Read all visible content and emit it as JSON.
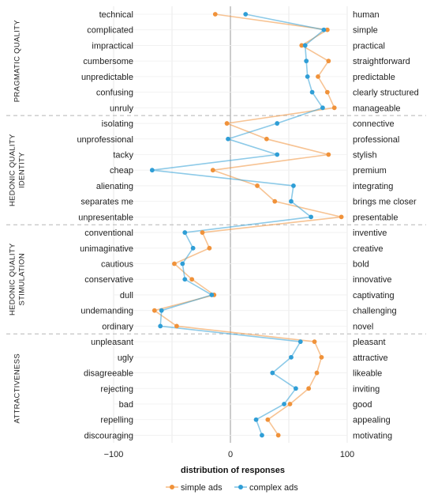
{
  "chart_data": {
    "type": "line",
    "xlabel": "distribution of responses",
    "xlim": [
      -100,
      100
    ],
    "xticks": [
      "−100",
      "0",
      "100"
    ],
    "series": [
      {
        "name": "simple ads",
        "color": "#f0923a"
      },
      {
        "name": "complex ads",
        "color": "#2f9ed6"
      }
    ],
    "groups": [
      {
        "label": [
          "PRAGMATIC QUALITY"
        ],
        "items": [
          {
            "left": "technical",
            "right": "human",
            "simple": -13,
            "complex": 13
          },
          {
            "left": "complicated",
            "right": "simple",
            "simple": 83,
            "complex": 80
          },
          {
            "left": "impractical",
            "right": "practical",
            "simple": 61,
            "complex": 64
          },
          {
            "left": "cumbersome",
            "right": "straightforward",
            "simple": 84,
            "complex": 65
          },
          {
            "left": "unpredictable",
            "right": "predictable",
            "simple": 75,
            "complex": 66
          },
          {
            "left": "confusing",
            "right": "clearly structured",
            "simple": 83,
            "complex": 70
          },
          {
            "left": "unruly",
            "right": "manageable",
            "simple": 89,
            "complex": 79
          }
        ]
      },
      {
        "label": [
          "HEDONIC QUALITY",
          "IDENTITY"
        ],
        "items": [
          {
            "left": "isolating",
            "right": "connective",
            "simple": -3,
            "complex": 40
          },
          {
            "left": "unprofessional",
            "right": "professional",
            "simple": 31,
            "complex": -2
          },
          {
            "left": "tacky",
            "right": "stylish",
            "simple": 84,
            "complex": 40
          },
          {
            "left": "cheap",
            "right": "premium",
            "simple": -15,
            "complex": -67
          },
          {
            "left": "alienating",
            "right": "integrating",
            "simple": 23,
            "complex": 54
          },
          {
            "left": "separates me",
            "right": "brings me closer",
            "simple": 38,
            "complex": 52
          },
          {
            "left": "unpresentable",
            "right": "presentable",
            "simple": 95,
            "complex": 69
          }
        ]
      },
      {
        "label": [
          "HEDONIC QUALITY",
          "STIMULATION"
        ],
        "items": [
          {
            "left": "conventional",
            "right": "inventive",
            "simple": -24,
            "complex": -39
          },
          {
            "left": "unimaginative",
            "right": "creative",
            "simple": -18,
            "complex": -32
          },
          {
            "left": "cautious",
            "right": "bold",
            "simple": -48,
            "complex": -41
          },
          {
            "left": "conservative",
            "right": "innovative",
            "simple": -33,
            "complex": -39
          },
          {
            "left": "dull",
            "right": "captivating",
            "simple": -14,
            "complex": -16
          },
          {
            "left": "undemanding",
            "right": "challenging",
            "simple": -65,
            "complex": -59
          },
          {
            "left": "ordinary",
            "right": "novel",
            "simple": -46,
            "complex": -60
          }
        ]
      },
      {
        "label": [
          "ATTRACTIVENESS"
        ],
        "items": [
          {
            "left": "unpleasant",
            "right": "pleasant",
            "simple": 72,
            "complex": 60
          },
          {
            "left": "ugly",
            "right": "attractive",
            "simple": 78,
            "complex": 52
          },
          {
            "left": "disagreeable",
            "right": "likeable",
            "simple": 74,
            "complex": 36
          },
          {
            "left": "rejecting",
            "right": "inviting",
            "simple": 67,
            "complex": 56
          },
          {
            "left": "bad",
            "right": "good",
            "simple": 51,
            "complex": 46
          },
          {
            "left": "repelling",
            "right": "appealing",
            "simple": 32,
            "complex": 22
          },
          {
            "left": "discouraging",
            "right": "motivating",
            "simple": 41,
            "complex": 27
          }
        ]
      }
    ]
  }
}
